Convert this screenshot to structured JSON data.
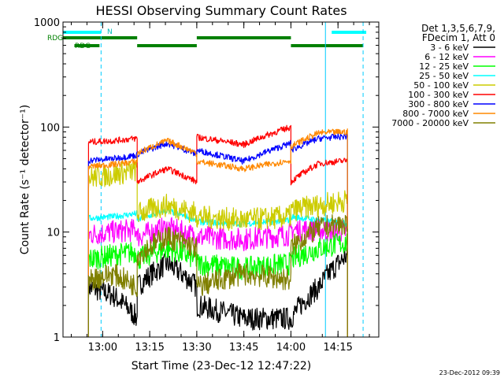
{
  "chart_data": {
    "type": "line",
    "title": "HESSI Observing Summary Count Rates",
    "xlabel": "Start Time (23-Dec-12 12:47:22)",
    "ylabel": "Count Rate (s⁻¹ detector⁻¹)",
    "y_scale": "log",
    "ylim": [
      1,
      1000
    ],
    "xlim": [
      "12:47:22",
      "14:28:00"
    ],
    "x_ticks": [
      "13:00",
      "13:15",
      "13:30",
      "13:45",
      "14:00",
      "14:15"
    ],
    "y_ticks": [
      "1",
      "10",
      "100",
      "1000"
    ],
    "legend_position": "right",
    "legend_header": [
      "Det 1,3,5,6,7,9,",
      "FDecim 1, Att 0"
    ],
    "timestamp": "23-Dec-2012 09:39",
    "flags": {
      "rdg_labels": [
        "RDG",
        "RDG"
      ],
      "n_label": "N",
      "night": [
        {
          "start": "12:47:22",
          "end": "12:59:30"
        },
        {
          "start": "14:13:00",
          "end": "14:24:00"
        }
      ],
      "rdg_upper": [
        {
          "start": "12:47:22",
          "end": "13:11:00"
        },
        {
          "start": "13:30:00",
          "end": "14:00:00"
        }
      ],
      "rdg_lower": [
        {
          "start": "12:51:00",
          "end": "12:59:00"
        },
        {
          "start": "13:11:00",
          "end": "13:30:00"
        },
        {
          "start": "14:00:00",
          "end": "14:23:00"
        }
      ]
    },
    "vertical_lines": [
      {
        "time": "12:47:22",
        "style": "solid"
      },
      {
        "time": "12:59:30",
        "style": "dashed"
      },
      {
        "time": "14:11:00",
        "style": "solid"
      },
      {
        "time": "14:23:00",
        "style": "dashed"
      }
    ],
    "data_window": {
      "start": "12:55:30",
      "end": "14:18:00"
    },
    "segments": [
      {
        "start": "12:55:30",
        "end": "13:11:00"
      },
      {
        "start": "13:11:00",
        "end": "13:30:00"
      },
      {
        "start": "13:30:00",
        "end": "14:00:00"
      },
      {
        "start": "14:00:00",
        "end": "14:18:00"
      }
    ],
    "series": [
      {
        "name": "3 - 6 keV",
        "color": "#000000",
        "segment_values": [
          [
            3,
            2.5,
            1.5
          ],
          [
            3,
            5,
            3
          ],
          [
            2,
            1.5,
            1.5
          ],
          [
            1.5,
            3,
            6
          ]
        ]
      },
      {
        "name": "6 - 12 keV",
        "color": "#ff00ff",
        "segment_values": [
          [
            9.5,
            10,
            10.5
          ],
          [
            9,
            11,
            9
          ],
          [
            9,
            8.5,
            9.5
          ],
          [
            10.5,
            10.5,
            10
          ]
        ]
      },
      {
        "name": "12 - 25 keV",
        "color": "#00ff00",
        "segment_values": [
          [
            5.5,
            6,
            6.5
          ],
          [
            5.5,
            7,
            5.5
          ],
          [
            5,
            4.5,
            5
          ],
          [
            5.5,
            7,
            8
          ]
        ]
      },
      {
        "name": "25 - 50 keV",
        "color": "#00ffff",
        "segment_values": [
          [
            13.5,
            14,
            15
          ],
          [
            13,
            16,
            13
          ],
          [
            12.5,
            12,
            13
          ],
          [
            14,
            13,
            12
          ]
        ]
      },
      {
        "name": "50 - 100 keV",
        "color": "#cccc00",
        "segment_values": [
          [
            33,
            35,
            39
          ],
          [
            15,
            18,
            15
          ],
          [
            14,
            13,
            14
          ],
          [
            16,
            18,
            20
          ]
        ]
      },
      {
        "name": "100 - 300 keV",
        "color": "#ff0000",
        "segment_values": [
          [
            72,
            74,
            78
          ],
          [
            30,
            40,
            30
          ],
          [
            80,
            68,
            100
          ],
          [
            30,
            45,
            48
          ]
        ]
      },
      {
        "name": "300 - 800 keV",
        "color": "#0000ff",
        "segment_values": [
          [
            48,
            50,
            54
          ],
          [
            55,
            70,
            55
          ],
          [
            60,
            47,
            70
          ],
          [
            60,
            78,
            82
          ]
        ]
      },
      {
        "name": "800 - 7000 keV",
        "color": "#ff8800",
        "segment_values": [
          [
            42,
            44,
            47
          ],
          [
            56,
            74,
            56
          ],
          [
            47,
            40,
            48
          ],
          [
            65,
            88,
            90
          ]
        ]
      },
      {
        "name": "7000 - 20000 keV",
        "color": "#808000",
        "segment_values": [
          [
            3.5,
            4,
            3
          ],
          [
            6,
            9,
            7
          ],
          [
            3,
            4,
            3.5
          ],
          [
            7,
            11,
            12
          ]
        ]
      }
    ]
  }
}
